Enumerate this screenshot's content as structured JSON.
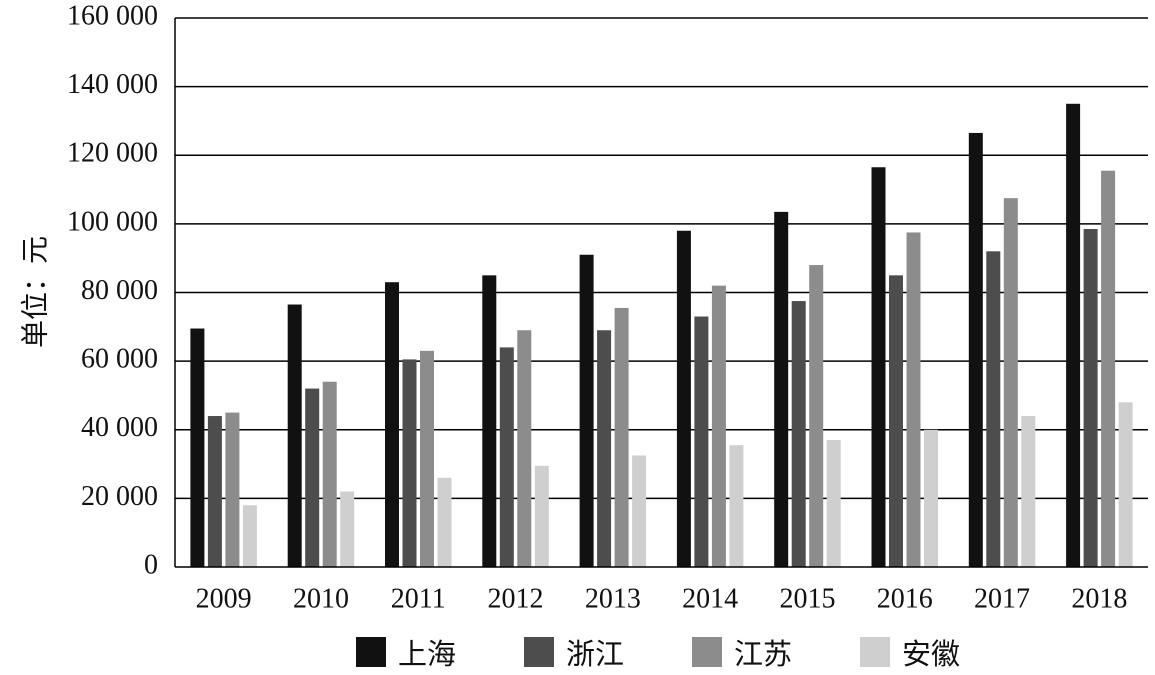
{
  "chart_data": {
    "type": "bar",
    "title": "",
    "xlabel": "",
    "ylabel": "单位：元",
    "categories": [
      "2009",
      "2010",
      "2011",
      "2012",
      "2013",
      "2014",
      "2015",
      "2016",
      "2017",
      "2018"
    ],
    "ylim": [
      0,
      160000
    ],
    "yticks": [
      0,
      20000,
      40000,
      60000,
      80000,
      100000,
      120000,
      140000,
      160000
    ],
    "ytick_labels": [
      "0",
      "20 000",
      "40 000",
      "60 000",
      "80 000",
      "100 000",
      "120 000",
      "140 000",
      "160 000"
    ],
    "grid": true,
    "legend_position": "bottom",
    "series": [
      {
        "name": "上海",
        "color": "#111111",
        "values": [
          69500,
          76500,
          83000,
          85000,
          91000,
          98000,
          103500,
          116500,
          126500,
          135000
        ]
      },
      {
        "name": "浙江",
        "color": "#4d4d4d",
        "values": [
          44000,
          52000,
          60500,
          64000,
          69000,
          73000,
          77500,
          85000,
          92000,
          98500
        ]
      },
      {
        "name": "江苏",
        "color": "#8c8c8c",
        "values": [
          45000,
          54000,
          63000,
          69000,
          75500,
          82000,
          88000,
          97500,
          107500,
          115500
        ]
      },
      {
        "name": "安徽",
        "color": "#cfcfcf",
        "values": [
          18000,
          22000,
          26000,
          29500,
          32500,
          35500,
          37000,
          40000,
          44000,
          48000
        ]
      }
    ]
  }
}
